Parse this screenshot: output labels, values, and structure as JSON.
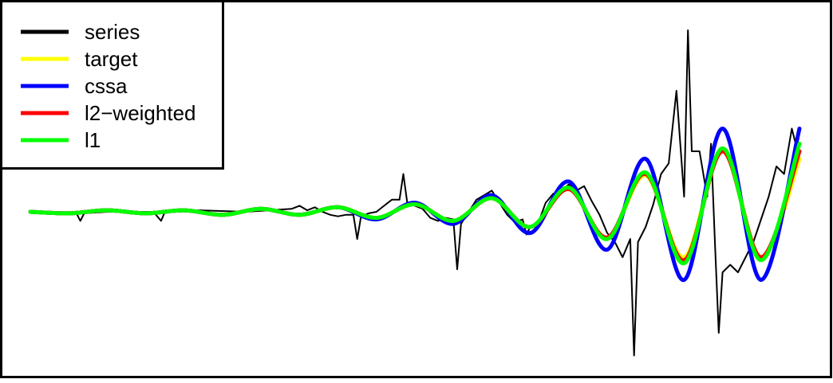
{
  "chart_data": {
    "type": "line",
    "title": "",
    "xlabel": "",
    "ylabel": "",
    "axes_shown": false,
    "grid": false,
    "legend_position": "top-left",
    "x_range": [
      0,
      1
    ],
    "y_range": [
      -1,
      1
    ],
    "series": [
      {
        "name": "series",
        "color": "#000000",
        "x": [
          0,
          0.04,
          0.06,
          0.065,
          0.07,
          0.1,
          0.16,
          0.17,
          0.175,
          0.18,
          0.22,
          0.28,
          0.34,
          0.35,
          0.36,
          0.37,
          0.38,
          0.39,
          0.4,
          0.41,
          0.42,
          0.425,
          0.43,
          0.44,
          0.45,
          0.46,
          0.47,
          0.48,
          0.485,
          0.49,
          0.5,
          0.51,
          0.52,
          0.53,
          0.54,
          0.55,
          0.555,
          0.56,
          0.57,
          0.58,
          0.59,
          0.6,
          0.61,
          0.62,
          0.63,
          0.64,
          0.645,
          0.65,
          0.66,
          0.67,
          0.68,
          0.69,
          0.7,
          0.71,
          0.72,
          0.73,
          0.74,
          0.75,
          0.76,
          0.77,
          0.78,
          0.785,
          0.79,
          0.8,
          0.81,
          0.82,
          0.83,
          0.84,
          0.85,
          0.855,
          0.86,
          0.87,
          0.88,
          0.885,
          0.89,
          0.895,
          0.9,
          0.91,
          0.92,
          0.93,
          0.94,
          0.95,
          0.96,
          0.97,
          0.98,
          0.99,
          1.0
        ],
        "values": [
          0.0,
          -0.01,
          -0.01,
          -0.06,
          -0.01,
          0.0,
          0.0,
          -0.06,
          0.0,
          0.0,
          0.01,
          0.0,
          0.02,
          0.04,
          0.01,
          0.03,
          0.0,
          -0.02,
          -0.03,
          -0.02,
          -0.02,
          -0.18,
          -0.03,
          -0.01,
          0.0,
          0.04,
          0.08,
          0.08,
          0.25,
          0.06,
          0.04,
          0.02,
          -0.04,
          -0.06,
          -0.04,
          -0.05,
          -0.38,
          -0.08,
          0.0,
          0.08,
          0.11,
          0.14,
          0.06,
          -0.02,
          -0.07,
          -0.05,
          -0.15,
          -0.1,
          -0.08,
          0.06,
          0.12,
          0.14,
          0.18,
          0.14,
          0.17,
          0.07,
          -0.02,
          -0.14,
          -0.2,
          -0.3,
          -0.18,
          -0.95,
          -0.2,
          -0.1,
          0.05,
          0.25,
          0.32,
          0.8,
          0.1,
          1.2,
          0.4,
          0.4,
          0.1,
          0.45,
          -0.2,
          -0.8,
          -0.4,
          -0.35,
          -0.4,
          -0.3,
          -0.2,
          -0.05,
          0.1,
          0.3,
          0.25,
          0.55,
          0.35
        ]
      },
      {
        "name": "target",
        "color": "#ffff00",
        "x": [
          0,
          0.05,
          0.1,
          0.15,
          0.2,
          0.25,
          0.3,
          0.35,
          0.4,
          0.45,
          0.5,
          0.55,
          0.6,
          0.65,
          0.7,
          0.75,
          0.8,
          0.85,
          0.9,
          0.95,
          1.0
        ],
        "values": [
          0.0,
          -0.01,
          0.01,
          -0.01,
          0.01,
          -0.02,
          0.02,
          -0.02,
          0.03,
          -0.04,
          0.05,
          -0.06,
          0.09,
          -0.1,
          0.15,
          -0.17,
          0.24,
          -0.3,
          0.4,
          -0.3,
          0.35
        ]
      },
      {
        "name": "cssa",
        "color": "#0000ff",
        "x": [
          0,
          0.05,
          0.1,
          0.15,
          0.2,
          0.25,
          0.3,
          0.35,
          0.4,
          0.45,
          0.5,
          0.55,
          0.6,
          0.65,
          0.7,
          0.75,
          0.8,
          0.85,
          0.9,
          0.95,
          1.0
        ],
        "values": [
          0.0,
          -0.01,
          0.01,
          -0.01,
          0.01,
          -0.02,
          0.02,
          -0.02,
          0.03,
          -0.05,
          0.06,
          -0.08,
          0.11,
          -0.14,
          0.2,
          -0.25,
          0.35,
          -0.45,
          0.55,
          -0.45,
          0.55
        ]
      },
      {
        "name": "l2−weighted",
        "color": "#ff0000",
        "x": [
          0,
          0.05,
          0.1,
          0.15,
          0.2,
          0.25,
          0.3,
          0.35,
          0.4,
          0.45,
          0.5,
          0.55,
          0.6,
          0.65,
          0.7,
          0.75,
          0.8,
          0.85,
          0.9,
          0.95,
          1.0
        ],
        "values": [
          0.0,
          -0.01,
          0.01,
          -0.01,
          0.01,
          -0.02,
          0.02,
          -0.02,
          0.03,
          -0.04,
          0.05,
          -0.06,
          0.09,
          -0.1,
          0.15,
          -0.17,
          0.25,
          -0.32,
          0.4,
          -0.3,
          0.4
        ]
      },
      {
        "name": "l1",
        "color": "#00ff00",
        "x": [
          0,
          0.05,
          0.1,
          0.15,
          0.2,
          0.25,
          0.3,
          0.35,
          0.4,
          0.45,
          0.5,
          0.55,
          0.6,
          0.65,
          0.7,
          0.75,
          0.8,
          0.85,
          0.9,
          0.95,
          1.0
        ],
        "values": [
          0.0,
          -0.01,
          0.01,
          -0.01,
          0.01,
          -0.02,
          0.02,
          -0.02,
          0.03,
          -0.04,
          0.05,
          -0.06,
          0.09,
          -0.1,
          0.16,
          -0.18,
          0.26,
          -0.34,
          0.42,
          -0.32,
          0.45
        ]
      }
    ]
  }
}
